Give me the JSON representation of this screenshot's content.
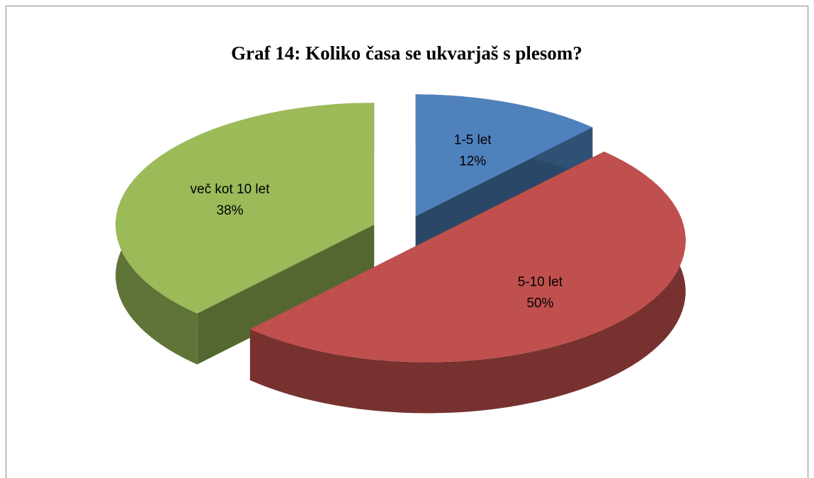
{
  "chart_data": {
    "type": "pie",
    "title": "Graf 14: Koliko časa se ukvarjaš s plesom?",
    "categories": [
      "1-5 let",
      "5-10 let",
      "več kot 10 let"
    ],
    "values": [
      12,
      50,
      38
    ],
    "value_labels": [
      "12%",
      "50%",
      "38%"
    ],
    "colors": [
      "#4f81bd",
      "#c0504d",
      "#9bbb59"
    ]
  }
}
